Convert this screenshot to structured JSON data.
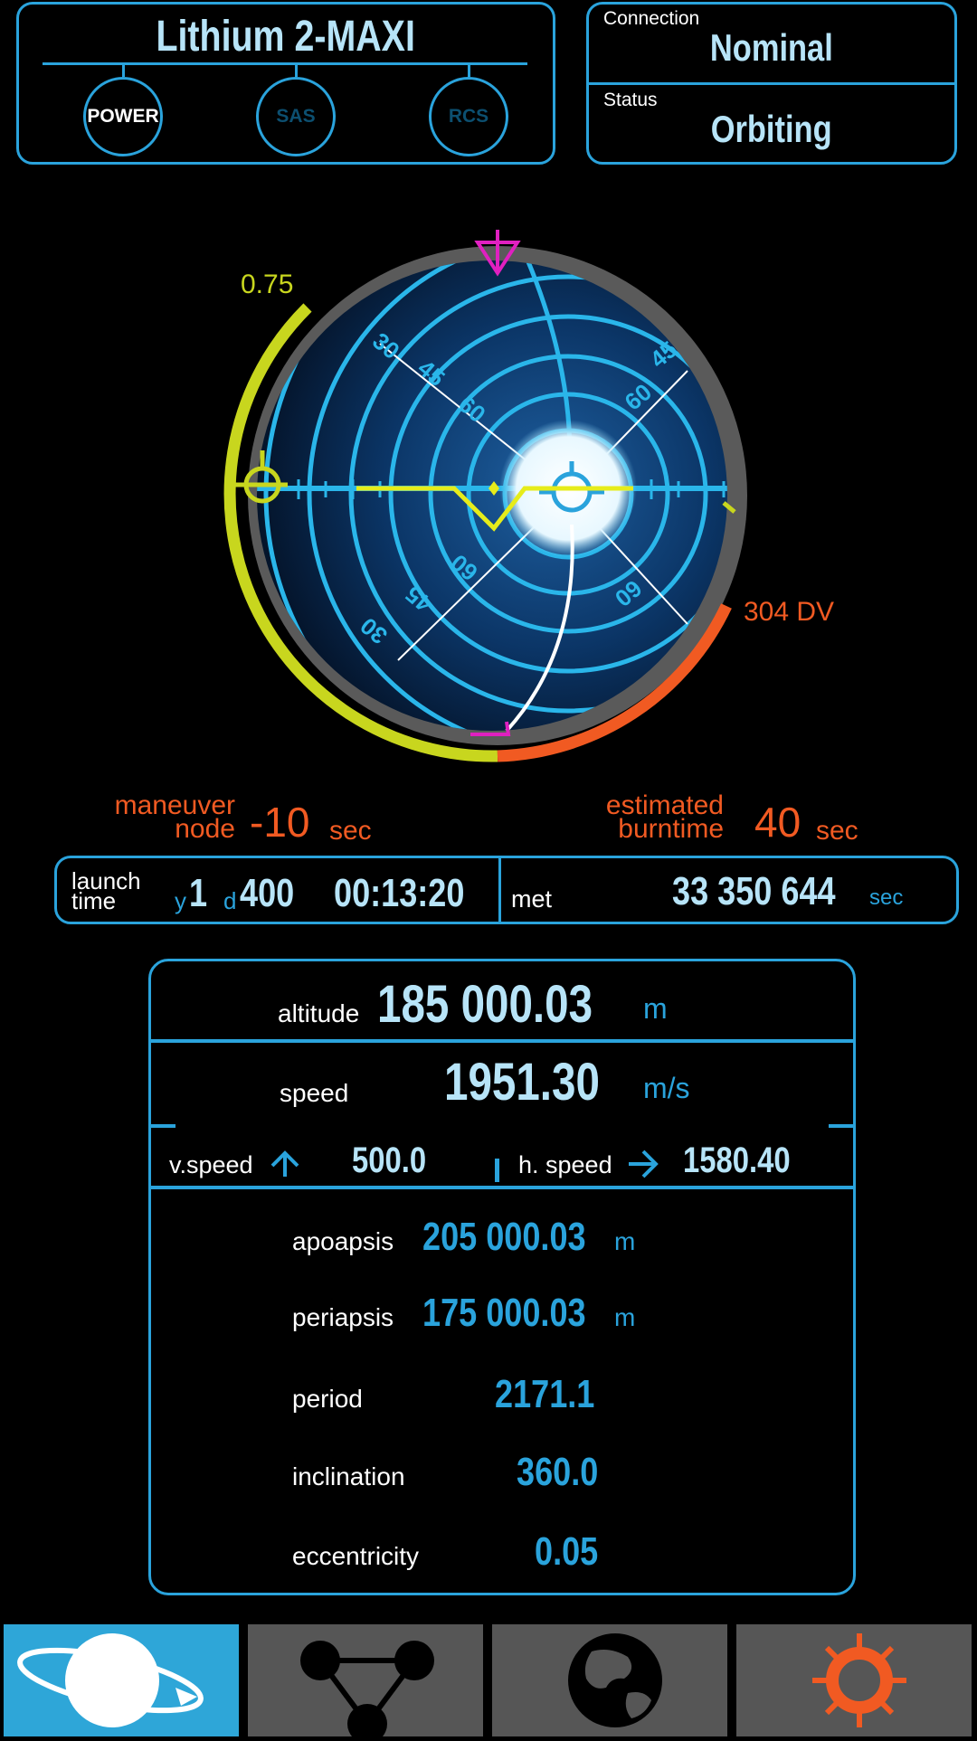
{
  "vessel": {
    "name": "Lithium 2-MAXI",
    "systems": [
      {
        "label": "POWER",
        "active": true
      },
      {
        "label": "SAS",
        "active": false
      },
      {
        "label": "RCS",
        "active": false
      }
    ]
  },
  "connection": {
    "label": "Connection",
    "value": "Nominal"
  },
  "status": {
    "label": "Status",
    "value": "Orbiting"
  },
  "navball": {
    "throttle_label": "0.75",
    "throttle_fraction": 0.75,
    "dv_label": "304 DV",
    "dv_fraction": 0.35,
    "pitch_labels": [
      "30",
      "45",
      "60"
    ]
  },
  "maneuver": {
    "label_line1": "maneuver",
    "label_line2": "node",
    "value": "-10",
    "unit": "sec"
  },
  "burn": {
    "label_line1": "estimated",
    "label_line2": "burntime",
    "value": "40",
    "unit": "sec"
  },
  "timer": {
    "launch_label_1": "launch",
    "launch_label_2": "time",
    "year_unit": "y",
    "year": "1",
    "day_unit": "d",
    "day": "400",
    "clock": "00:13:20",
    "met_label": "met",
    "met_value": "33 350 644",
    "met_unit": "sec"
  },
  "telemetry": {
    "altitude": {
      "label": "altitude",
      "value": "185 000.03",
      "unit": "m"
    },
    "speed": {
      "label": "speed",
      "value": "1951.30",
      "unit": "m/s"
    },
    "vspeed": {
      "label": "v.speed",
      "value": "500.0"
    },
    "hspeed": {
      "label": "h. speed",
      "value": "1580.40"
    },
    "apoapsis": {
      "label": "apoapsis",
      "value": "205 000.03",
      "unit": "m"
    },
    "periapsis": {
      "label": "periapsis",
      "value": "175 000.03",
      "unit": "m"
    },
    "period": {
      "label": "period",
      "value": "2171.1"
    },
    "inclination": {
      "label": "inclination",
      "value": "360.0"
    },
    "eccentricity": {
      "label": "eccentricity",
      "value": "0.05"
    }
  },
  "nav": {
    "tabs": [
      {
        "icon": "planet-icon",
        "active": true
      },
      {
        "icon": "network-icon",
        "active": false
      },
      {
        "icon": "globe-icon",
        "active": false
      },
      {
        "icon": "settings-icon",
        "active": false
      }
    ]
  },
  "colors": {
    "accent": "#2aa3dc",
    "throttle": "#c8d61e",
    "warning": "#f15a22",
    "marker": "#e020c0"
  }
}
